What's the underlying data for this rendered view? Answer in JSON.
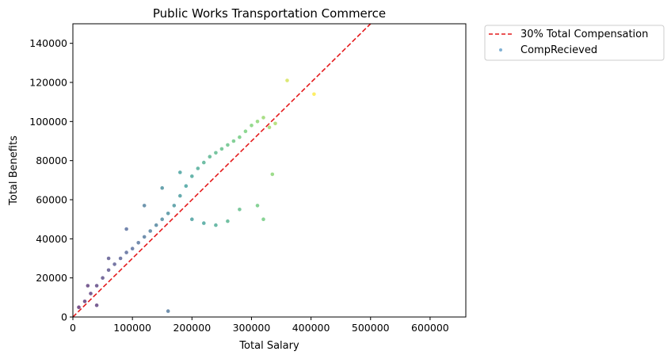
{
  "chart_data": {
    "type": "scatter",
    "title": "Public Works Transportation Commerce",
    "xlabel": "Total Salary",
    "ylabel": "Total Benefits",
    "xlim": [
      0,
      660000
    ],
    "ylim": [
      0,
      150000
    ],
    "xticks": [
      0,
      100000,
      200000,
      300000,
      400000,
      500000,
      600000
    ],
    "xtick_labels": [
      "0",
      "100000",
      "200000",
      "300000",
      "400000",
      "500000",
      "600000"
    ],
    "yticks": [
      0,
      20000,
      40000,
      60000,
      80000,
      100000,
      120000,
      140000
    ],
    "ytick_labels": [
      "0",
      "20000",
      "40000",
      "60000",
      "80000",
      "100000",
      "120000",
      "140000"
    ],
    "grid": false,
    "legend_position": "outside-top-right",
    "colormap": "viridis",
    "series": [
      {
        "name": "30% Total Compensation",
        "kind": "line",
        "style": "dashed",
        "color": "#e41a1c",
        "x": [
          0,
          500000
        ],
        "y": [
          0,
          150000
        ]
      },
      {
        "name": "CompRecieved",
        "kind": "scatter",
        "color": "#4a90c2",
        "x": [
          10000,
          20000,
          30000,
          40000,
          50000,
          60000,
          70000,
          80000,
          90000,
          100000,
          110000,
          120000,
          130000,
          140000,
          150000,
          160000,
          170000,
          180000,
          190000,
          200000,
          210000,
          220000,
          230000,
          240000,
          250000,
          260000,
          270000,
          280000,
          290000,
          300000,
          310000,
          320000,
          330000,
          340000,
          360000,
          405000,
          60000,
          90000,
          120000,
          150000,
          180000,
          200000,
          220000,
          240000,
          260000,
          280000,
          310000,
          320000,
          335000,
          160000,
          40000,
          25000
        ],
        "y": [
          5000,
          8000,
          12000,
          16000,
          20000,
          24000,
          27000,
          30000,
          33000,
          35000,
          38000,
          41000,
          44000,
          47000,
          50000,
          53000,
          57000,
          62000,
          67000,
          72000,
          76000,
          79000,
          82000,
          84000,
          86000,
          88000,
          90000,
          92000,
          95000,
          98000,
          100000,
          102000,
          97000,
          99000,
          121000,
          114000,
          30000,
          45000,
          57000,
          66000,
          74000,
          50000,
          48000,
          47000,
          49000,
          55000,
          57000,
          50000,
          73000,
          3000,
          6000,
          16000
        ]
      }
    ]
  }
}
